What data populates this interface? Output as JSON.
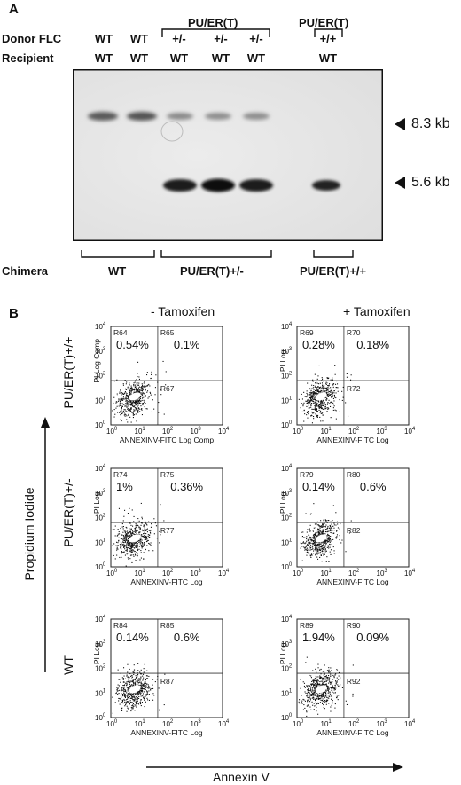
{
  "panel_a": {
    "letter": "A",
    "donor_label": "Donor FLC",
    "recipient_label": "Recipient",
    "group_het": "PU/ER(T)",
    "group_hom": "PU/ER(T)",
    "donor": [
      "WT",
      "WT",
      "+/-",
      "+/-",
      "+/-",
      "+/+"
    ],
    "recipient": [
      "WT",
      "WT",
      "WT",
      "WT",
      "WT",
      "WT"
    ],
    "band_upper": "8.3 kb",
    "band_lower": "5.6 kb",
    "chimera_label": "Chimera",
    "chimera_groups": [
      "WT",
      "PU/ER(T)+/-",
      "PU/ER(T)+/+"
    ]
  },
  "panel_b": {
    "letter": "B",
    "col_titles": [
      "- Tamoxifen",
      "+ Tamoxifen"
    ],
    "row_labels": [
      "PU/ER(T)+/+",
      "PU/ER(T)+/-",
      "WT"
    ],
    "y_axis_label": "Propidium Iodide",
    "x_axis_label": "Annexin V",
    "tick_labels": {
      "x": [
        "10",
        "10",
        "10",
        "10",
        "10"
      ],
      "x_exp": [
        "0",
        "1",
        "2",
        "3",
        "4"
      ],
      "y": [
        "10",
        "10",
        "10",
        "10",
        "10"
      ],
      "y_exp": [
        "0",
        "1",
        "2",
        "3",
        "4"
      ]
    },
    "plots": [
      {
        "ylabel": "PI Log Comp",
        "xlabel": "ANNEXINV-FITC Log Comp",
        "ul_region": "R64",
        "ur_region": "R65",
        "lr_region": "R67",
        "ul_pct": "0.54%",
        "ur_pct": "0.1%"
      },
      {
        "ylabel": "PI Log",
        "xlabel": "ANNEXINV-FITC Log",
        "ul_region": "R69",
        "ur_region": "R70",
        "lr_region": "R72",
        "ul_pct": "0.28%",
        "ur_pct": "0.18%"
      },
      {
        "ylabel": "PI Log",
        "xlabel": "ANNEXINV-FITC Log",
        "ul_region": "R74",
        "ur_region": "R75",
        "lr_region": "R77",
        "ul_pct": "1%",
        "ur_pct": "0.36%"
      },
      {
        "ylabel": "PI Log",
        "xlabel": "ANNEXINV-FITC Log",
        "ul_region": "R79",
        "ur_region": "R80",
        "lr_region": "R82",
        "ul_pct": "0.14%",
        "ur_pct": "0.6%"
      },
      {
        "ylabel": "PI Log",
        "xlabel": "ANNEXINV-FITC Log",
        "ul_region": "R84",
        "ur_region": "R85",
        "lr_region": "R87",
        "ul_pct": "0.14%",
        "ur_pct": "0.6%"
      },
      {
        "ylabel": "PI Log",
        "xlabel": "ANNEXINV-FITC Log",
        "ul_region": "R89",
        "ur_region": "R90",
        "lr_region": "R92",
        "ul_pct": "1.94%",
        "ur_pct": "0.09%"
      }
    ]
  }
}
